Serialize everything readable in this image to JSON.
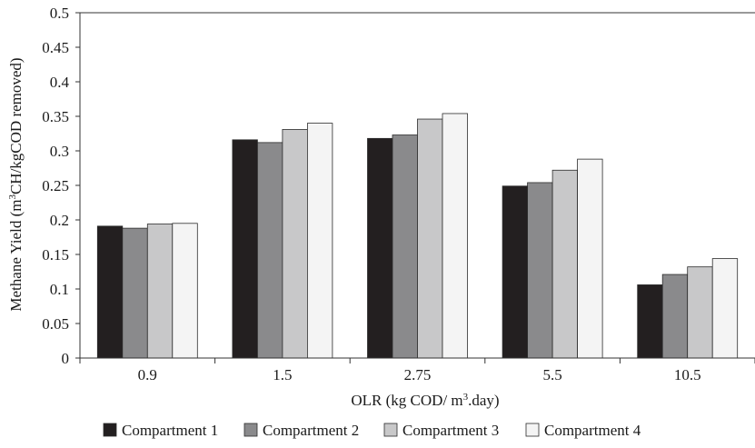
{
  "chart_data": {
    "type": "bar",
    "categories": [
      "0.9",
      "1.5",
      "2.75",
      "5.5",
      "10.5"
    ],
    "series": [
      {
        "name": "Compartment 1",
        "color": "#231f20",
        "values": [
          0.191,
          0.316,
          0.318,
          0.249,
          0.106
        ]
      },
      {
        "name": "Compartment 2",
        "color": "#8a8a8c",
        "values": [
          0.188,
          0.312,
          0.323,
          0.254,
          0.121
        ]
      },
      {
        "name": "Compartment 3",
        "color": "#c8c8c9",
        "values": [
          0.194,
          0.331,
          0.346,
          0.272,
          0.132
        ]
      },
      {
        "name": "Compartment 4",
        "color": "#f4f4f4",
        "values": [
          0.195,
          0.34,
          0.354,
          0.288,
          0.144
        ]
      }
    ],
    "ylim": [
      0,
      0.5
    ],
    "yticks": [
      "0",
      "0.05",
      "0.1",
      "0.15",
      "0.2",
      "0.25",
      "0.3",
      "0.35",
      "0.4",
      "0.45",
      "0.5"
    ],
    "xlabel": {
      "before": "OLR (kg COD/ m",
      "sup": "3",
      "after": ".day)"
    },
    "ylabel": {
      "before": "Methane Yield (m",
      "sup": "3",
      "after": "CH/kgCOD removed)"
    },
    "legend_position": "bottom",
    "grid": false
  }
}
